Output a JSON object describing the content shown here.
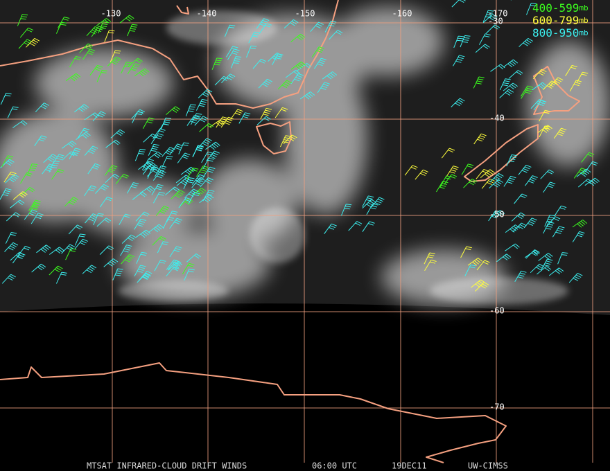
{
  "map": {
    "longitude_labels": [
      "-130",
      "-140",
      "-150",
      "-160",
      "-170"
    ],
    "latitude_labels": [
      "-30",
      "-40",
      "-50",
      "-60",
      "-70"
    ],
    "legend": [
      {
        "range": "400-599",
        "unit": "mb",
        "color": "#3cff1e"
      },
      {
        "range": "600-799",
        "unit": "mb",
        "color": "#ffff3c"
      },
      {
        "range": "800-950",
        "unit": "mb",
        "color": "#3cf0f0"
      }
    ],
    "footer": {
      "product": "MTSAT INFRARED-CLOUD DRIFT WINDS",
      "time": "06:00 UTC",
      "date": "19DEC11",
      "source": "UW-CIMSS"
    }
  }
}
